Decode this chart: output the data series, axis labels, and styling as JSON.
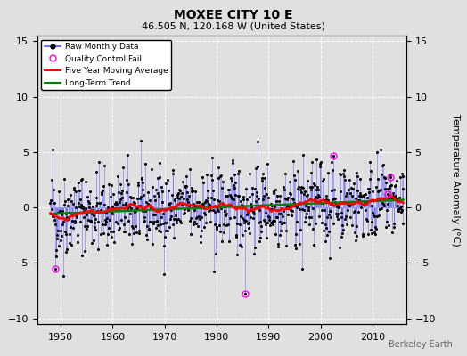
{
  "title": "MOXEE CITY 10 E",
  "subtitle": "46.505 N, 120.168 W (United States)",
  "ylabel_right": "Temperature Anomaly (°C)",
  "xlim": [
    1945.5,
    2016.5
  ],
  "ylim": [
    -10.5,
    15.5
  ],
  "yticks": [
    -10,
    -5,
    0,
    5,
    10,
    15
  ],
  "xticks": [
    1950,
    1960,
    1970,
    1980,
    1990,
    2000,
    2010
  ],
  "background_color": "#e0e0e0",
  "plot_bg_color": "#e0e0e0",
  "raw_line_color": "#5555ff",
  "raw_marker_color": "black",
  "qc_fail_color": "magenta",
  "moving_avg_color": "red",
  "trend_color": "green",
  "watermark": "Berkeley Earth",
  "seed": 42,
  "n_months": 816,
  "start_year": 1948.0,
  "moving_avg_window": 60
}
